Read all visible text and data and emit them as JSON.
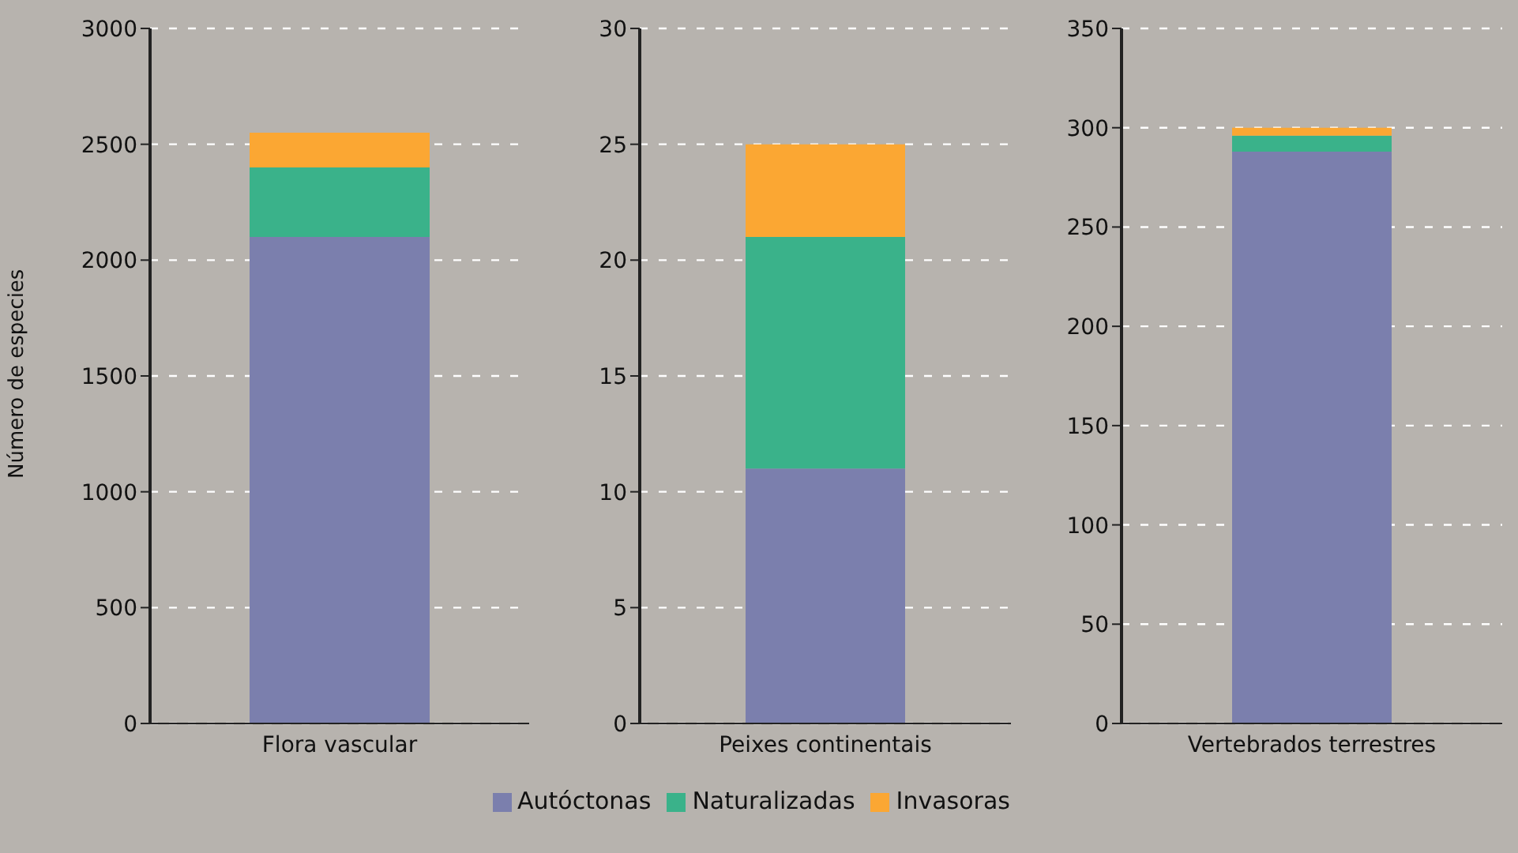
{
  "chart_data": [
    {
      "type": "bar",
      "stacked": true,
      "categories": [
        "Flora vascular"
      ],
      "ylabel": "Número de especies",
      "ylim": [
        0,
        3000
      ],
      "yticks": [
        0,
        500,
        1000,
        1500,
        2000,
        2500,
        3000
      ],
      "grid": "y",
      "series": [
        {
          "color": "#7b7fad",
          "values": [
            2100
          ]
        },
        {
          "color": "#3ab28a",
          "values": [
            300
          ]
        },
        {
          "color": "#fba733",
          "values": [
            150
          ]
        }
      ]
    },
    {
      "type": "bar",
      "stacked": true,
      "categories": [
        "Peixes continentais"
      ],
      "ylim": [
        0,
        30
      ],
      "yticks": [
        0,
        5,
        10,
        15,
        20,
        25,
        30
      ],
      "grid": "y",
      "legend": "bottom",
      "series": [
        {
          "name": "Autóctonas",
          "color": "#7b7fad",
          "values": [
            11
          ]
        },
        {
          "name": "Naturalizadas",
          "color": "#3ab28a",
          "values": [
            10
          ]
        },
        {
          "name": "Invasoras",
          "color": "#fba733",
          "values": [
            4
          ]
        }
      ]
    },
    {
      "type": "bar",
      "stacked": true,
      "categories": [
        "Vertebrados terrestres"
      ],
      "ylim": [
        0,
        350
      ],
      "yticks": [
        0,
        50,
        100,
        150,
        200,
        250,
        300,
        350
      ],
      "grid": "y",
      "series": [
        {
          "color": "#7b7fad",
          "values": [
            288
          ]
        },
        {
          "color": "#3ab28a",
          "values": [
            8
          ]
        },
        {
          "color": "#fba733",
          "values": [
            4
          ]
        }
      ]
    }
  ]
}
